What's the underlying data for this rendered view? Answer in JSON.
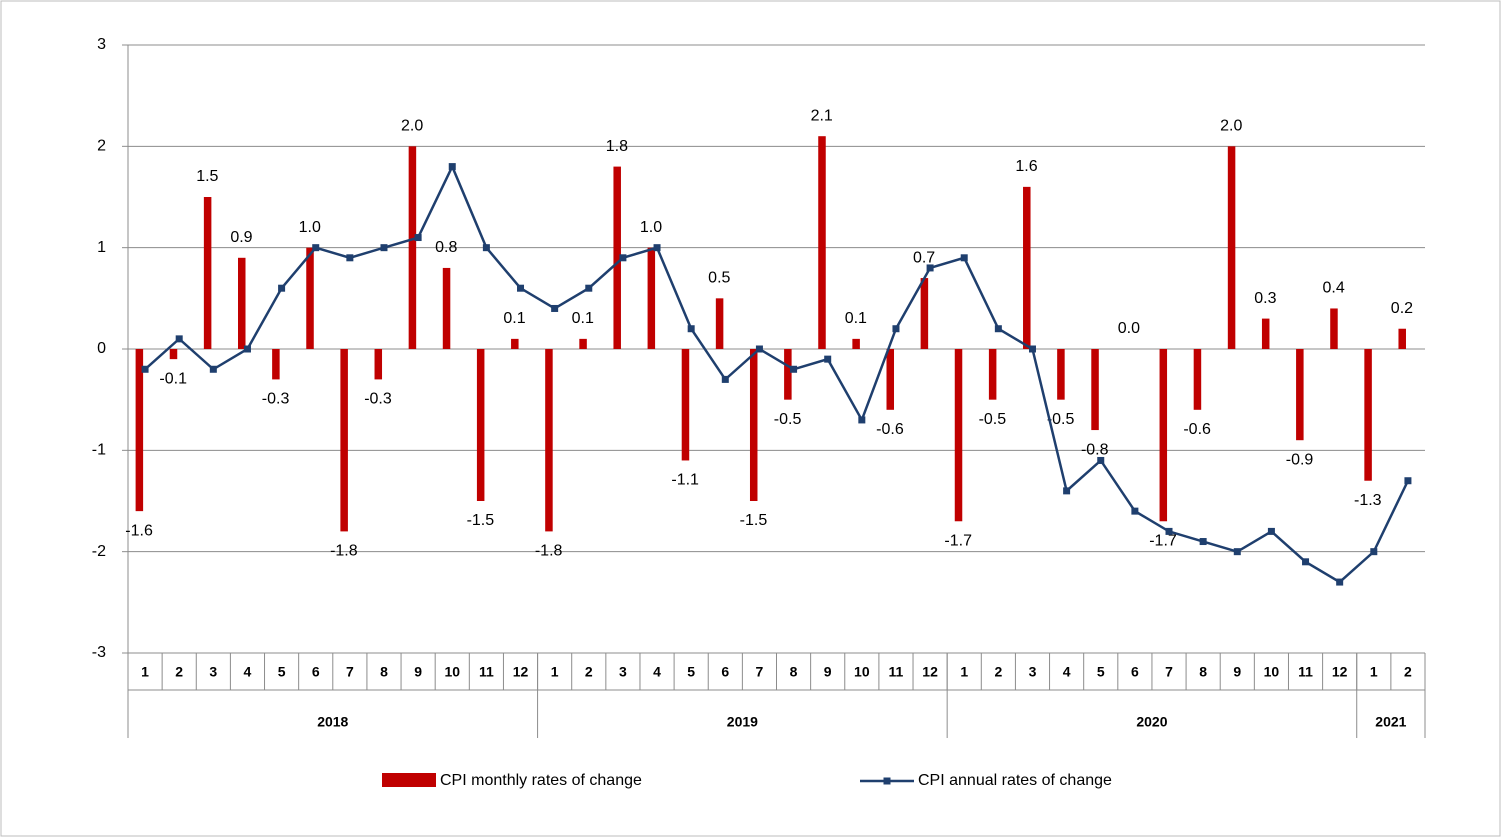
{
  "chart_data": {
    "type": "bar-line",
    "groups": [
      {
        "label": "2018",
        "categories": [
          "1",
          "2",
          "3",
          "4",
          "5",
          "6",
          "7",
          "8",
          "9",
          "10",
          "11",
          "12"
        ]
      },
      {
        "label": "2019",
        "categories": [
          "1",
          "2",
          "3",
          "4",
          "5",
          "6",
          "7",
          "8",
          "9",
          "10",
          "11",
          "12"
        ]
      },
      {
        "label": "2020",
        "categories": [
          "1",
          "2",
          "3",
          "4",
          "5",
          "6",
          "7",
          "8",
          "9",
          "10",
          "11",
          "12"
        ]
      },
      {
        "label": "2021",
        "categories": [
          "1",
          "2"
        ]
      }
    ],
    "series": [
      {
        "name": "CPI monthly rates of change",
        "type": "bar",
        "color": "#c00000",
        "values": [
          -1.6,
          -0.1,
          1.5,
          0.9,
          -0.3,
          1.0,
          -1.8,
          -0.3,
          2.0,
          0.8,
          -1.5,
          0.1,
          -1.8,
          0.1,
          1.8,
          1.0,
          -1.1,
          0.5,
          -1.5,
          -0.5,
          2.1,
          0.1,
          -0.6,
          0.7,
          -1.7,
          -0.5,
          1.6,
          -0.5,
          -0.8,
          0.0,
          -1.7,
          -0.6,
          2.0,
          0.3,
          -0.9,
          0.4,
          -1.3,
          0.2
        ],
        "value_labels": [
          "-1.6",
          "-0.1",
          "1.5",
          "0.9",
          "-0.3",
          "1.0",
          "-1.8",
          "-0.3",
          "2.0",
          "0.8",
          "-1.5",
          "0.1",
          "-1.8",
          "0.1",
          "1.8",
          "1.0",
          "-1.1",
          "0.5",
          "-1.5",
          "-0.5",
          "2.1",
          "0.1",
          "-0.6",
          "0.7",
          "-1.7",
          "-0.5",
          "1.6",
          "-0.5",
          "-0.8",
          "0.0",
          "-1.7",
          "-0.6",
          "2.0",
          "0.3",
          "-0.9",
          "0.4",
          "-1.3",
          "0.2"
        ]
      },
      {
        "name": "CPI annual rates of change",
        "type": "line",
        "color": "#1f3f6e",
        "values": [
          -0.2,
          0.1,
          -0.2,
          0.0,
          0.6,
          1.0,
          0.9,
          1.0,
          1.1,
          1.8,
          1.0,
          0.6,
          0.4,
          0.6,
          0.9,
          1.0,
          0.2,
          -0.3,
          0.0,
          -0.2,
          -0.1,
          -0.7,
          0.2,
          0.8,
          0.9,
          0.2,
          0.0,
          -1.4,
          -1.1,
          -1.6,
          -1.8,
          -1.9,
          -2.0,
          -1.8,
          -2.1,
          -2.3,
          -2.0,
          -1.3
        ]
      }
    ],
    "ylim": [
      -3,
      3
    ],
    "yticks": [
      -3,
      -2,
      -1,
      0,
      1,
      2,
      3
    ],
    "grid": true
  }
}
